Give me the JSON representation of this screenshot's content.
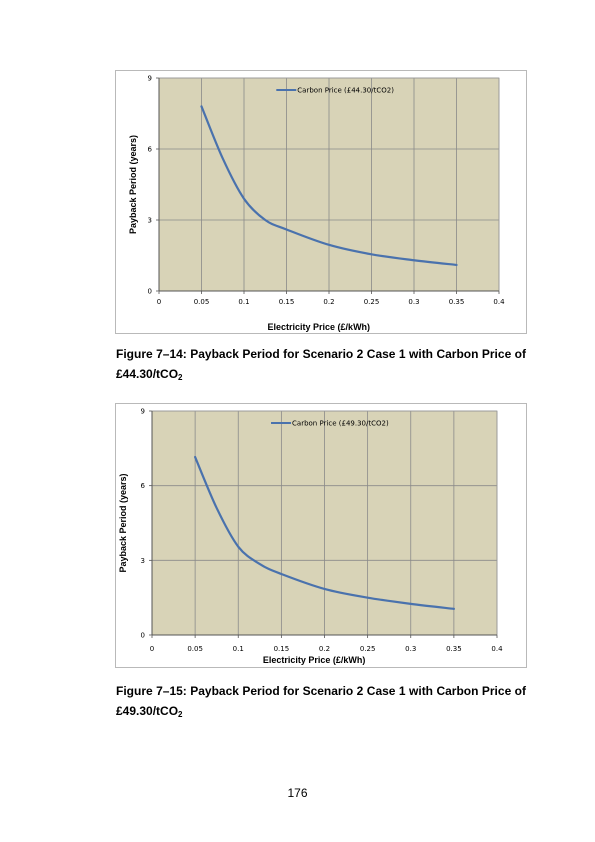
{
  "colors": {
    "plot_background": "#d8d3b7",
    "gridline": "#8a8a8a",
    "series_line": "#4a72ad",
    "frame_border": "#b9b9b9"
  },
  "figures": [
    {
      "caption_text": "Figure 7–14: Payback Period for Scenario 2 Case 1 with Carbon Price of £44.30/tCO",
      "caption_subscript": "2"
    },
    {
      "caption_text": "Figure 7–15: Payback Period for Scenario 2 Case 1 with Carbon Price of £49.30/tCO",
      "caption_subscript": "2"
    }
  ],
  "page_number": "176",
  "chart_data": [
    {
      "type": "line",
      "xlabel": "Electricity Price (£/kWh)",
      "ylabel": "Payback Period (years)",
      "xlim": [
        0,
        0.4
      ],
      "ylim": [
        0,
        9
      ],
      "x_ticks": [
        "0",
        "0.05",
        "0.1",
        "0.15",
        "0.2",
        "0.25",
        "0.3",
        "0.35",
        "0.4"
      ],
      "y_ticks": [
        "0",
        "3",
        "6",
        "9"
      ],
      "grid": true,
      "legend_position": "top-center",
      "series": [
        {
          "name": "Carbon Price (£44.30/tCO2)",
          "x": [
            0.05,
            0.075,
            0.1,
            0.125,
            0.15,
            0.2,
            0.25,
            0.3,
            0.35
          ],
          "y": [
            7.8,
            5.6,
            3.9,
            3.0,
            2.6,
            1.95,
            1.55,
            1.3,
            1.1
          ]
        }
      ]
    },
    {
      "type": "line",
      "xlabel": "Electricity Price (£/kWh)",
      "ylabel": "Payback Period (years)",
      "xlim": [
        0,
        0.4
      ],
      "ylim": [
        0,
        9
      ],
      "x_ticks": [
        "0",
        "0.05",
        "0.1",
        "0.15",
        "0.2",
        "0.25",
        "0.3",
        "0.35",
        "0.4"
      ],
      "y_ticks": [
        "0",
        "3",
        "6",
        "9"
      ],
      "grid": true,
      "legend_position": "top-center",
      "series": [
        {
          "name": "Carbon Price (£49.30/tCO2)",
          "x": [
            0.05,
            0.075,
            0.1,
            0.125,
            0.15,
            0.2,
            0.25,
            0.3,
            0.35
          ],
          "y": [
            7.15,
            5.1,
            3.55,
            2.85,
            2.45,
            1.85,
            1.5,
            1.25,
            1.05
          ]
        }
      ]
    }
  ]
}
